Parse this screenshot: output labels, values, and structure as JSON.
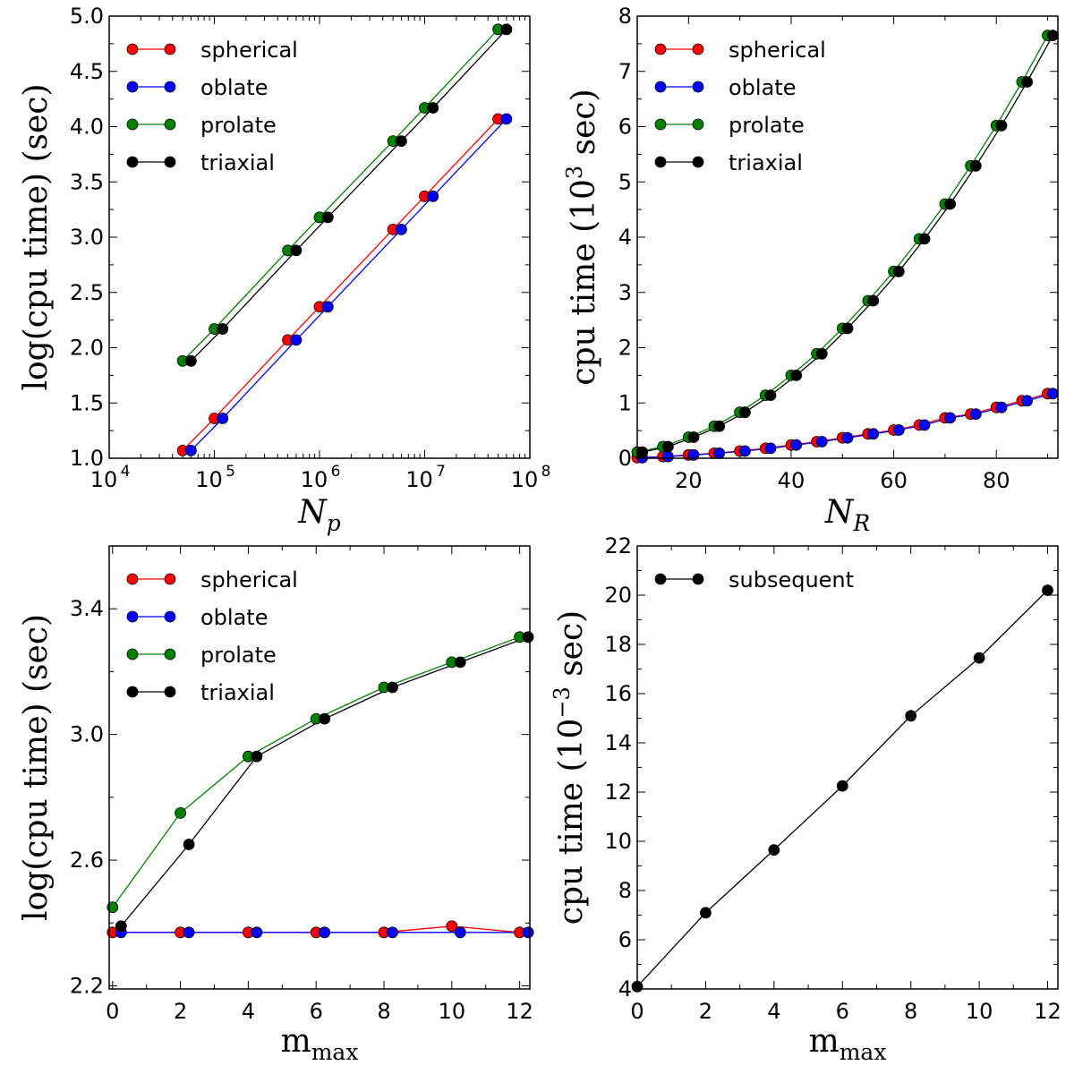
{
  "chart_data": [
    {
      "id": "tl",
      "type": "line",
      "xscale": "log",
      "xlim_exp": [
        4,
        8
      ],
      "ylim": [
        1.0,
        5.0
      ],
      "xlabel_main": "N",
      "xlabel_sub": "p",
      "ylabel": "log(cpu time) (sec)",
      "xticks": [
        {
          "base": "10",
          "exp": "4"
        },
        {
          "base": "10",
          "exp": "5"
        },
        {
          "base": "10",
          "exp": "6"
        },
        {
          "base": "10",
          "exp": "7"
        },
        {
          "base": "10",
          "exp": "8"
        }
      ],
      "yticks": [
        "1.0",
        "1.5",
        "2.0",
        "2.5",
        "3.0",
        "3.5",
        "4.0",
        "4.5",
        "5.0"
      ],
      "legend_position": "top-left",
      "series": [
        {
          "name": "spherical",
          "color": "#ff0000",
          "x": [
            50000,
            100000,
            500000,
            1000000,
            5000000,
            10000000,
            50000000
          ],
          "y": [
            1.07,
            1.36,
            2.07,
            2.37,
            3.07,
            3.37,
            4.07
          ]
        },
        {
          "name": "oblate",
          "color": "#0000ff",
          "x": [
            60000,
            120000,
            600000,
            1200000,
            6000000,
            12000000,
            60000000
          ],
          "y": [
            1.07,
            1.36,
            2.07,
            2.37,
            3.07,
            3.37,
            4.07
          ]
        },
        {
          "name": "prolate",
          "color": "#008000",
          "x": [
            50000,
            100000,
            500000,
            1000000,
            5000000,
            10000000,
            50000000
          ],
          "y": [
            1.88,
            2.17,
            2.88,
            3.18,
            3.87,
            4.17,
            4.88
          ]
        },
        {
          "name": "triaxial",
          "color": "#000000",
          "x": [
            60000,
            120000,
            600000,
            1200000,
            6000000,
            12000000,
            60000000
          ],
          "y": [
            1.88,
            2.17,
            2.88,
            3.18,
            3.87,
            4.17,
            4.88
          ]
        }
      ]
    },
    {
      "id": "tr",
      "type": "line",
      "xscale": "linear",
      "xlim": [
        10,
        92
      ],
      "ylim": [
        0,
        8
      ],
      "xlabel_main": "N",
      "xlabel_sub": "R",
      "ylabel": "cpu time (10^3 sec)",
      "xticks": [
        "20",
        "40",
        "60",
        "80"
      ],
      "yticks": [
        "0",
        "1",
        "2",
        "3",
        "4",
        "5",
        "6",
        "7",
        "8"
      ],
      "legend_position": "top-left",
      "series": [
        {
          "name": "spherical",
          "color": "#ff0000",
          "x": [
            10,
            15,
            20,
            25,
            30,
            35,
            40,
            45,
            50,
            55,
            60,
            65,
            70,
            75,
            80,
            85,
            90
          ],
          "y": [
            0.01,
            0.03,
            0.06,
            0.09,
            0.13,
            0.18,
            0.24,
            0.3,
            0.37,
            0.44,
            0.51,
            0.6,
            0.73,
            0.8,
            0.92,
            1.04,
            1.17
          ]
        },
        {
          "name": "oblate",
          "color": "#0000ff",
          "x": [
            11,
            16,
            21,
            26,
            31,
            36,
            41,
            46,
            51,
            56,
            61,
            66,
            71,
            76,
            81,
            86,
            91
          ],
          "y": [
            0.01,
            0.03,
            0.06,
            0.09,
            0.13,
            0.18,
            0.24,
            0.3,
            0.37,
            0.44,
            0.51,
            0.6,
            0.73,
            0.8,
            0.92,
            1.04,
            1.17
          ]
        },
        {
          "name": "prolate",
          "color": "#008000",
          "x": [
            10,
            15,
            20,
            25,
            30,
            35,
            40,
            45,
            50,
            55,
            60,
            65,
            70,
            75,
            80,
            85,
            90
          ],
          "y": [
            0.11,
            0.21,
            0.38,
            0.58,
            0.83,
            1.14,
            1.5,
            1.89,
            2.35,
            2.85,
            3.38,
            3.97,
            4.6,
            5.29,
            6.02,
            6.81,
            7.65
          ]
        },
        {
          "name": "triaxial",
          "color": "#000000",
          "x": [
            11,
            16,
            21,
            26,
            31,
            36,
            41,
            46,
            51,
            56,
            61,
            66,
            71,
            76,
            81,
            86,
            91
          ],
          "y": [
            0.11,
            0.21,
            0.38,
            0.58,
            0.83,
            1.14,
            1.5,
            1.89,
            2.35,
            2.85,
            3.38,
            3.97,
            4.6,
            5.29,
            6.02,
            6.81,
            7.65
          ]
        }
      ]
    },
    {
      "id": "bl",
      "type": "line",
      "xscale": "linear",
      "xlim": [
        -0.1,
        12.3
      ],
      "ylim": [
        2.19,
        3.6
      ],
      "xlabel_main": "m",
      "xlabel_sub": "max",
      "ylabel": "log(cpu time) (sec)",
      "xticks": [
        "0",
        "2",
        "4",
        "6",
        "8",
        "10",
        "12"
      ],
      "yticks": [
        "2.2",
        "2.6",
        "3.0",
        "3.4"
      ],
      "legend_position": "top-left",
      "series": [
        {
          "name": "spherical",
          "color": "#ff0000",
          "x": [
            0,
            2,
            4,
            6,
            8,
            10,
            12
          ],
          "y": [
            2.37,
            2.37,
            2.37,
            2.37,
            2.37,
            2.39,
            2.37
          ]
        },
        {
          "name": "oblate",
          "color": "#0000ff",
          "x": [
            0.25,
            2.25,
            4.25,
            6.25,
            8.25,
            10.25,
            12.25
          ],
          "y": [
            2.37,
            2.37,
            2.37,
            2.37,
            2.37,
            2.37,
            2.37
          ]
        },
        {
          "name": "prolate",
          "color": "#008000",
          "x": [
            0,
            2,
            4,
            6,
            8,
            10,
            12
          ],
          "y": [
            2.45,
            2.75,
            2.93,
            3.05,
            3.15,
            3.23,
            3.31
          ]
        },
        {
          "name": "triaxial",
          "color": "#000000",
          "x": [
            0.25,
            2.25,
            4.25,
            6.25,
            8.25,
            10.25,
            12.25
          ],
          "y": [
            2.39,
            2.65,
            2.93,
            3.05,
            3.15,
            3.23,
            3.31
          ]
        }
      ]
    },
    {
      "id": "br",
      "type": "line",
      "xscale": "linear",
      "xlim": [
        0,
        12.3
      ],
      "ylim": [
        4,
        22
      ],
      "xlabel_main": "m",
      "xlabel_sub": "max",
      "ylabel": "cpu time (10^-3 sec)",
      "xticks": [
        "0",
        "2",
        "4",
        "6",
        "8",
        "10",
        "12"
      ],
      "yticks": [
        "4",
        "6",
        "8",
        "10",
        "12",
        "14",
        "16",
        "18",
        "20",
        "22"
      ],
      "legend_position": "top-left",
      "series": [
        {
          "name": "subsequent",
          "color": "#000000",
          "x": [
            0,
            2,
            4,
            6,
            8,
            10,
            12
          ],
          "y": [
            4.1,
            7.1,
            9.65,
            12.25,
            15.1,
            17.45,
            20.2
          ]
        }
      ]
    }
  ]
}
